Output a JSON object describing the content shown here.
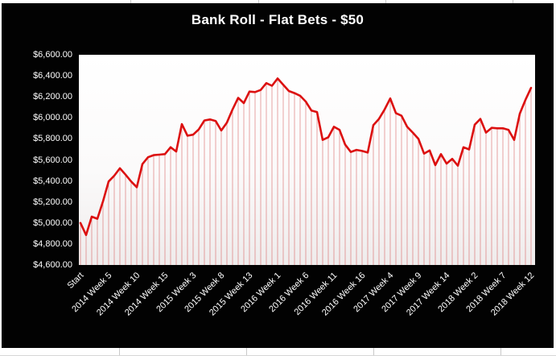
{
  "page": {
    "background_color": "#ffffff",
    "gridline_color": "#c9c9c9"
  },
  "chart": {
    "background_color": "#020202",
    "title_color": "#ffffff",
    "axis_text_color": "#ffffff",
    "line_color": "#dc1010",
    "drop_line_color": "#d65a5a",
    "plot_bg_top": "#ffffff",
    "plot_bg_bottom": "#efecec"
  },
  "chart_data": {
    "type": "line",
    "title": "Bank Roll - Flat Bets - $50",
    "xlabel": "",
    "ylabel": "",
    "ylim": [
      4600,
      6600
    ],
    "y_tick_step": 200,
    "y_tick_labels": [
      "$6,600.00",
      "$6,400.00",
      "$6,200.00",
      "$6,000.00",
      "$5,800.00",
      "$5,600.00",
      "$5,400.00",
      "$5,200.00",
      "$5,000.00",
      "$4,800.00",
      "$4,600.00"
    ],
    "x_tick_labels": [
      "Start",
      "2014 Week 5",
      "2014 Week 10",
      "2014 Week 15",
      "2015 Week 3",
      "2015 Week 8",
      "2015 Week 13",
      "2016 Week 1",
      "2016 Week 6",
      "2016 Week 11",
      "2016 Week 16",
      "2017 Week 4",
      "2017 Week 9",
      "2017 Week 14",
      "2018 Week 2",
      "2018 Week 7",
      "2018 Week 12"
    ],
    "x_tick_interval": 5,
    "grid": false,
    "legend": false,
    "drop_lines": true,
    "values": [
      5000,
      4885,
      5060,
      5040,
      5205,
      5395,
      5450,
      5520,
      5460,
      5395,
      5340,
      5560,
      5625,
      5645,
      5650,
      5655,
      5720,
      5680,
      5940,
      5830,
      5840,
      5890,
      5975,
      5985,
      5970,
      5880,
      5955,
      6080,
      6190,
      6140,
      6250,
      6245,
      6265,
      6330,
      6305,
      6375,
      6315,
      6255,
      6235,
      6210,
      6155,
      6070,
      6055,
      5790,
      5815,
      5915,
      5885,
      5745,
      5675,
      5695,
      5685,
      5670,
      5930,
      5990,
      6080,
      6185,
      6045,
      6020,
      5915,
      5860,
      5800,
      5660,
      5690,
      5550,
      5655,
      5565,
      5610,
      5545,
      5720,
      5700,
      5935,
      5990,
      5860,
      5905,
      5900,
      5900,
      5885,
      5790,
      6040,
      6170,
      6285
    ]
  }
}
